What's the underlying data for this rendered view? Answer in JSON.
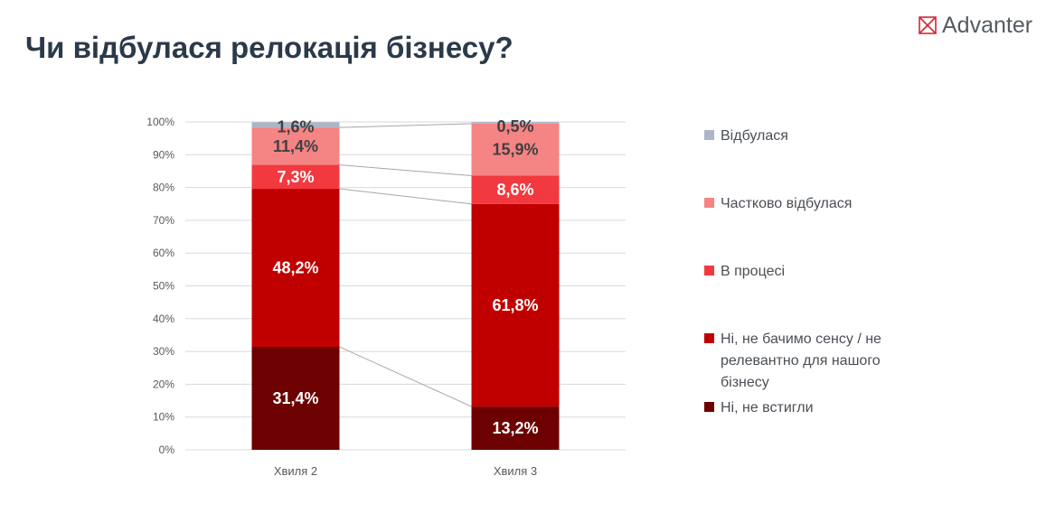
{
  "page": {
    "title": "Чи відбулася релокація бізнесу?"
  },
  "brand": {
    "name": "Advanter",
    "icon": "envelope-x-icon",
    "color": "#d62630"
  },
  "chart_data": {
    "type": "bar",
    "stacked": true,
    "categories": [
      "Хвиля 2",
      "Хвиля 3"
    ],
    "series": [
      {
        "name": "Ні, не встигли",
        "values": [
          31.4,
          13.2
        ],
        "labels": [
          "31,4%",
          "13,2%"
        ],
        "color": "#6d0000",
        "label_color": "#ffffff"
      },
      {
        "name": "Ні, не бачимо сенсу / не релевантно для нашого бізнесу",
        "values": [
          48.2,
          61.8
        ],
        "labels": [
          "48,2%",
          "61,8%"
        ],
        "color": "#c00000",
        "label_color": "#ffffff"
      },
      {
        "name": "В процесі",
        "values": [
          7.3,
          8.6
        ],
        "labels": [
          "7,3%",
          "8,6%"
        ],
        "color": "#f2393f",
        "label_color": "#ffffff"
      },
      {
        "name": "Частково відбулася",
        "values": [
          11.4,
          15.9
        ],
        "labels": [
          "11,4%",
          "15,9%"
        ],
        "color": "#f58484",
        "label_color": "#404040"
      },
      {
        "name": "Відбулася",
        "values": [
          1.6,
          0.5
        ],
        "labels": [
          "1,6%",
          "0,5%"
        ],
        "color": "#adb5c7",
        "label_color": "#404040"
      }
    ],
    "y_ticks": [
      "0%",
      "10%",
      "20%",
      "30%",
      "40%",
      "50%",
      "60%",
      "70%",
      "80%",
      "90%",
      "100%"
    ],
    "ylim": [
      0,
      100
    ],
    "grid": true,
    "series_lines": true,
    "legend_position": "right"
  }
}
